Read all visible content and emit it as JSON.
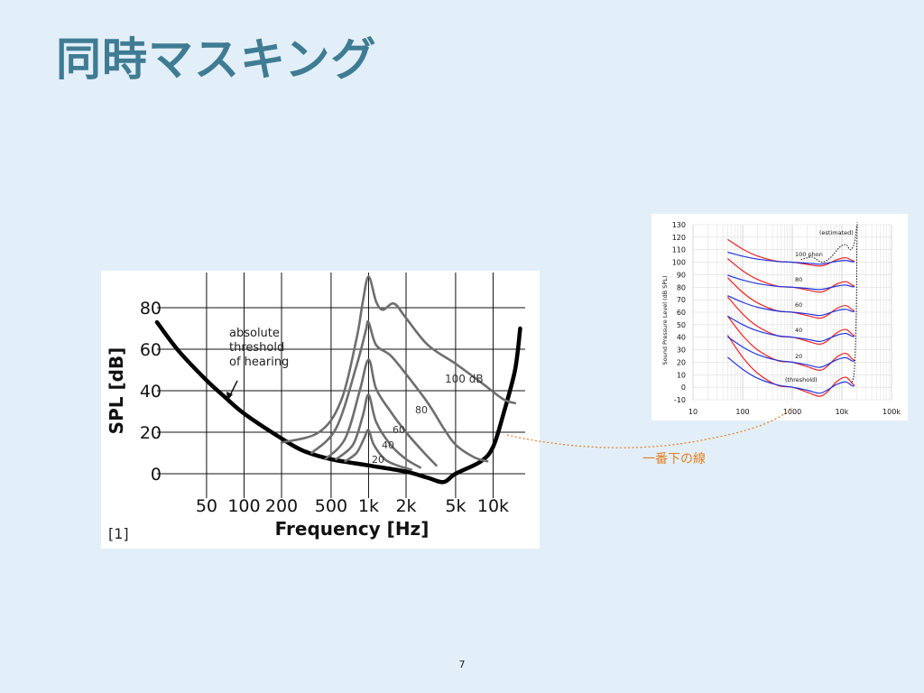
{
  "slide": {
    "title": "同時マスキング",
    "page_number": "7",
    "callout_label": "一番下の線",
    "accent_color": "#3f7c93",
    "callout_color": "#e07f24"
  },
  "chart_data": [
    {
      "type": "line",
      "xlabel": "Frequency [Hz]",
      "ylabel": "SPL [dB]",
      "x_scale": "log",
      "xlim": [
        20,
        20000
      ],
      "ylim": [
        -10,
        90
      ],
      "x_tick_labels": [
        "50",
        "100",
        "200",
        "500",
        "1k",
        "2k",
        "5k",
        "10k"
      ],
      "x_tick_values": [
        50,
        100,
        200,
        500,
        1000,
        2000,
        5000,
        10000
      ],
      "y_tick_labels": [
        "0",
        "20",
        "40",
        "60",
        "80"
      ],
      "y_tick_values": [
        0,
        20,
        40,
        60,
        80
      ],
      "grid": true,
      "reference": "[1]",
      "annotation": [
        "absolute",
        "threshold",
        "of hearing"
      ],
      "series": [
        {
          "name": "absolute threshold of hearing",
          "color": "#000000",
          "points": [
            [
              20,
              73
            ],
            [
              30,
              59
            ],
            [
              50,
              45
            ],
            [
              70,
              37
            ],
            [
              100,
              29
            ],
            [
              200,
              17
            ],
            [
              300,
              11
            ],
            [
              500,
              7
            ],
            [
              1000,
              4
            ],
            [
              2000,
              1
            ],
            [
              3000,
              -2
            ],
            [
              4000,
              -4
            ],
            [
              5000,
              0
            ],
            [
              8000,
              6
            ],
            [
              10000,
              13
            ],
            [
              12000,
              28
            ],
            [
              15000,
              50
            ],
            [
              16500,
              70
            ]
          ]
        },
        {
          "label": "100 dB",
          "color": "#6e6e6e",
          "points": [
            [
              200,
              15
            ],
            [
              400,
              20
            ],
            [
              600,
              35
            ],
            [
              800,
              65
            ],
            [
              900,
              83
            ],
            [
              1000,
              95
            ],
            [
              1150,
              83
            ],
            [
              1300,
              79
            ],
            [
              1600,
              82
            ],
            [
              2000,
              75
            ],
            [
              3000,
              62
            ],
            [
              5000,
              53
            ],
            [
              8000,
              44
            ],
            [
              12000,
              36
            ],
            [
              15000,
              34
            ]
          ]
        },
        {
          "label": "80",
          "color": "#6e6e6e",
          "points": [
            [
              350,
              10
            ],
            [
              550,
              22
            ],
            [
              800,
              52
            ],
            [
              950,
              69
            ],
            [
              1000,
              73
            ],
            [
              1150,
              62
            ],
            [
              1500,
              57
            ],
            [
              2000,
              48
            ],
            [
              3000,
              34
            ],
            [
              4000,
              22
            ],
            [
              5000,
              14
            ],
            [
              7000,
              8
            ],
            [
              9000,
              6
            ]
          ]
        },
        {
          "label": "60",
          "color": "#6e6e6e",
          "points": [
            [
              450,
              7
            ],
            [
              650,
              17
            ],
            [
              850,
              40
            ],
            [
              1000,
              55
            ],
            [
              1150,
              41
            ],
            [
              1500,
              30
            ],
            [
              2000,
              20
            ],
            [
              2800,
              10
            ],
            [
              3500,
              4
            ]
          ]
        },
        {
          "label": "40",
          "color": "#6e6e6e",
          "points": [
            [
              550,
              7
            ],
            [
              750,
              14
            ],
            [
              900,
              28
            ],
            [
              1000,
              38
            ],
            [
              1150,
              25
            ],
            [
              1500,
              14
            ],
            [
              2000,
              7
            ],
            [
              2600,
              3
            ]
          ]
        },
        {
          "label": "20",
          "color": "#6e6e6e",
          "points": [
            [
              650,
              6
            ],
            [
              800,
              10
            ],
            [
              920,
              17
            ],
            [
              1000,
              21
            ],
            [
              1100,
              14
            ],
            [
              1350,
              7
            ],
            [
              1700,
              4
            ],
            [
              2200,
              2
            ]
          ]
        }
      ]
    },
    {
      "type": "line",
      "ylabel": "Sound Pressure Level (dB SPL)",
      "x_scale": "log",
      "xlim": [
        10,
        100000
      ],
      "ylim": [
        -10,
        130
      ],
      "x_tick_labels": [
        "10",
        "100",
        "1000",
        "10k",
        "100k"
      ],
      "x_tick_values": [
        10,
        100,
        1000,
        10000,
        100000
      ],
      "y_tick_labels": [
        "130",
        "120",
        "110",
        "100",
        "90",
        "80",
        "70",
        "60",
        "50",
        "40",
        "30",
        "20",
        "10",
        "0",
        "-10"
      ],
      "y_tick_values": [
        130,
        120,
        110,
        100,
        90,
        80,
        70,
        60,
        50,
        40,
        30,
        20,
        10,
        0,
        -10
      ],
      "grid": true,
      "curve_labels": [
        "(estimated)",
        "100 phon",
        "80",
        "60",
        "40",
        "20",
        "(threshold)"
      ],
      "phon_levels": [
        0,
        20,
        40,
        60,
        80,
        100
      ],
      "series": [
        {
          "name": "red",
          "color": "#ee2222"
        },
        {
          "name": "blue",
          "color": "#2233dd"
        }
      ]
    }
  ]
}
